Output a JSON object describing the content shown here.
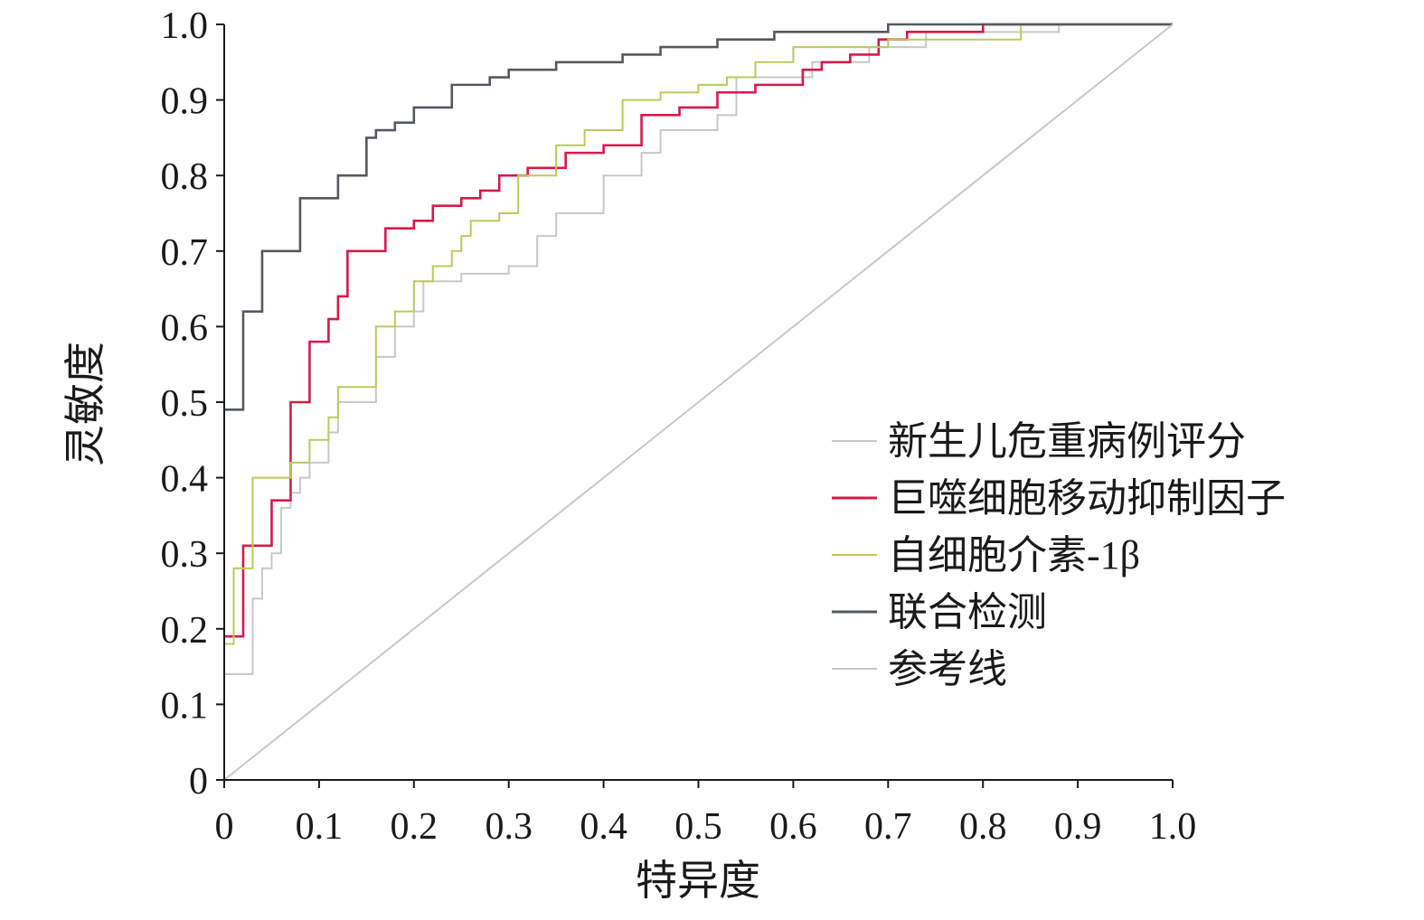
{
  "chart_data": {
    "type": "line",
    "xlabel": "特异度",
    "ylabel": "灵敏度",
    "xlim": [
      0,
      1.0
    ],
    "ylim": [
      0,
      1.0
    ],
    "x_ticks": [
      "0",
      "0.1",
      "0.2",
      "0.3",
      "0.4",
      "0.5",
      "0.6",
      "0.7",
      "0.8",
      "0.9",
      "1.0"
    ],
    "y_ticks": [
      "0",
      "0.1",
      "0.2",
      "0.3",
      "0.4",
      "0.5",
      "0.6",
      "0.7",
      "0.8",
      "0.9",
      "1.0"
    ],
    "grid": false,
    "legend_position": "center-right",
    "series": [
      {
        "name": "新生儿危重病例评分",
        "color": "#c8c8c8",
        "points": [
          [
            0,
            0.14
          ],
          [
            0.03,
            0.14
          ],
          [
            0.03,
            0.24
          ],
          [
            0.04,
            0.24
          ],
          [
            0.04,
            0.28
          ],
          [
            0.05,
            0.28
          ],
          [
            0.05,
            0.3
          ],
          [
            0.06,
            0.3
          ],
          [
            0.06,
            0.36
          ],
          [
            0.07,
            0.36
          ],
          [
            0.07,
            0.38
          ],
          [
            0.08,
            0.38
          ],
          [
            0.08,
            0.4
          ],
          [
            0.09,
            0.4
          ],
          [
            0.09,
            0.42
          ],
          [
            0.11,
            0.42
          ],
          [
            0.11,
            0.46
          ],
          [
            0.12,
            0.46
          ],
          [
            0.12,
            0.5
          ],
          [
            0.16,
            0.5
          ],
          [
            0.16,
            0.56
          ],
          [
            0.18,
            0.56
          ],
          [
            0.18,
            0.6
          ],
          [
            0.2,
            0.6
          ],
          [
            0.2,
            0.62
          ],
          [
            0.21,
            0.62
          ],
          [
            0.21,
            0.66
          ],
          [
            0.25,
            0.66
          ],
          [
            0.25,
            0.67
          ],
          [
            0.3,
            0.67
          ],
          [
            0.3,
            0.68
          ],
          [
            0.33,
            0.68
          ],
          [
            0.33,
            0.72
          ],
          [
            0.35,
            0.72
          ],
          [
            0.35,
            0.75
          ],
          [
            0.4,
            0.75
          ],
          [
            0.4,
            0.8
          ],
          [
            0.44,
            0.8
          ],
          [
            0.44,
            0.83
          ],
          [
            0.46,
            0.83
          ],
          [
            0.46,
            0.86
          ],
          [
            0.52,
            0.86
          ],
          [
            0.52,
            0.88
          ],
          [
            0.54,
            0.88
          ],
          [
            0.54,
            0.93
          ],
          [
            0.62,
            0.93
          ],
          [
            0.62,
            0.95
          ],
          [
            0.68,
            0.95
          ],
          [
            0.68,
            0.97
          ],
          [
            0.74,
            0.97
          ],
          [
            0.74,
            0.99
          ],
          [
            0.88,
            0.99
          ],
          [
            0.88,
            1.0
          ],
          [
            1.0,
            1.0
          ]
        ]
      },
      {
        "name": "巨噬细胞移动抑制因子",
        "color": "#d61a4a",
        "points": [
          [
            0,
            0.19
          ],
          [
            0.02,
            0.19
          ],
          [
            0.02,
            0.31
          ],
          [
            0.05,
            0.31
          ],
          [
            0.05,
            0.37
          ],
          [
            0.07,
            0.37
          ],
          [
            0.07,
            0.38
          ],
          [
            0.07,
            0.5
          ],
          [
            0.09,
            0.5
          ],
          [
            0.09,
            0.58
          ],
          [
            0.11,
            0.58
          ],
          [
            0.11,
            0.61
          ],
          [
            0.12,
            0.61
          ],
          [
            0.12,
            0.64
          ],
          [
            0.13,
            0.64
          ],
          [
            0.13,
            0.7
          ],
          [
            0.17,
            0.7
          ],
          [
            0.17,
            0.73
          ],
          [
            0.2,
            0.73
          ],
          [
            0.2,
            0.74
          ],
          [
            0.22,
            0.74
          ],
          [
            0.22,
            0.76
          ],
          [
            0.25,
            0.76
          ],
          [
            0.25,
            0.77
          ],
          [
            0.27,
            0.77
          ],
          [
            0.27,
            0.78
          ],
          [
            0.29,
            0.78
          ],
          [
            0.29,
            0.8
          ],
          [
            0.32,
            0.8
          ],
          [
            0.32,
            0.81
          ],
          [
            0.36,
            0.81
          ],
          [
            0.36,
            0.83
          ],
          [
            0.4,
            0.83
          ],
          [
            0.4,
            0.84
          ],
          [
            0.44,
            0.84
          ],
          [
            0.44,
            0.88
          ],
          [
            0.48,
            0.88
          ],
          [
            0.48,
            0.89
          ],
          [
            0.52,
            0.89
          ],
          [
            0.52,
            0.91
          ],
          [
            0.56,
            0.91
          ],
          [
            0.56,
            0.92
          ],
          [
            0.61,
            0.92
          ],
          [
            0.61,
            0.94
          ],
          [
            0.63,
            0.94
          ],
          [
            0.63,
            0.95
          ],
          [
            0.66,
            0.95
          ],
          [
            0.66,
            0.96
          ],
          [
            0.69,
            0.96
          ],
          [
            0.69,
            0.98
          ],
          [
            0.72,
            0.98
          ],
          [
            0.72,
            0.99
          ],
          [
            0.8,
            0.99
          ],
          [
            0.8,
            1.0
          ],
          [
            1.0,
            1.0
          ]
        ]
      },
      {
        "name": "自细胞介素-1β",
        "color": "#b8cc5a",
        "points": [
          [
            0,
            0.18
          ],
          [
            0.01,
            0.18
          ],
          [
            0.01,
            0.28
          ],
          [
            0.03,
            0.28
          ],
          [
            0.03,
            0.4
          ],
          [
            0.07,
            0.4
          ],
          [
            0.07,
            0.42
          ],
          [
            0.09,
            0.42
          ],
          [
            0.09,
            0.45
          ],
          [
            0.11,
            0.45
          ],
          [
            0.11,
            0.48
          ],
          [
            0.12,
            0.48
          ],
          [
            0.12,
            0.52
          ],
          [
            0.16,
            0.52
          ],
          [
            0.16,
            0.6
          ],
          [
            0.18,
            0.6
          ],
          [
            0.18,
            0.62
          ],
          [
            0.2,
            0.62
          ],
          [
            0.2,
            0.66
          ],
          [
            0.22,
            0.66
          ],
          [
            0.22,
            0.68
          ],
          [
            0.24,
            0.68
          ],
          [
            0.24,
            0.7
          ],
          [
            0.25,
            0.7
          ],
          [
            0.25,
            0.72
          ],
          [
            0.26,
            0.72
          ],
          [
            0.26,
            0.74
          ],
          [
            0.29,
            0.74
          ],
          [
            0.29,
            0.75
          ],
          [
            0.31,
            0.75
          ],
          [
            0.31,
            0.8
          ],
          [
            0.35,
            0.8
          ],
          [
            0.35,
            0.84
          ],
          [
            0.38,
            0.84
          ],
          [
            0.38,
            0.86
          ],
          [
            0.42,
            0.86
          ],
          [
            0.42,
            0.9
          ],
          [
            0.46,
            0.9
          ],
          [
            0.46,
            0.91
          ],
          [
            0.5,
            0.91
          ],
          [
            0.5,
            0.92
          ],
          [
            0.53,
            0.92
          ],
          [
            0.53,
            0.93
          ],
          [
            0.56,
            0.93
          ],
          [
            0.56,
            0.95
          ],
          [
            0.6,
            0.95
          ],
          [
            0.6,
            0.97
          ],
          [
            0.7,
            0.97
          ],
          [
            0.7,
            0.98
          ],
          [
            0.84,
            0.98
          ],
          [
            0.84,
            1.0
          ],
          [
            1.0,
            1.0
          ]
        ]
      },
      {
        "name": "联合检测",
        "color": "#555a60",
        "points": [
          [
            0,
            0.49
          ],
          [
            0.02,
            0.49
          ],
          [
            0.02,
            0.62
          ],
          [
            0.04,
            0.62
          ],
          [
            0.04,
            0.7
          ],
          [
            0.08,
            0.7
          ],
          [
            0.08,
            0.77
          ],
          [
            0.12,
            0.77
          ],
          [
            0.12,
            0.8
          ],
          [
            0.15,
            0.8
          ],
          [
            0.15,
            0.85
          ],
          [
            0.16,
            0.85
          ],
          [
            0.16,
            0.86
          ],
          [
            0.18,
            0.86
          ],
          [
            0.18,
            0.87
          ],
          [
            0.2,
            0.87
          ],
          [
            0.2,
            0.89
          ],
          [
            0.24,
            0.89
          ],
          [
            0.24,
            0.92
          ],
          [
            0.28,
            0.92
          ],
          [
            0.28,
            0.93
          ],
          [
            0.3,
            0.93
          ],
          [
            0.3,
            0.94
          ],
          [
            0.35,
            0.94
          ],
          [
            0.35,
            0.95
          ],
          [
            0.42,
            0.95
          ],
          [
            0.42,
            0.96
          ],
          [
            0.46,
            0.96
          ],
          [
            0.46,
            0.97
          ],
          [
            0.52,
            0.97
          ],
          [
            0.52,
            0.98
          ],
          [
            0.58,
            0.98
          ],
          [
            0.58,
            0.99
          ],
          [
            0.7,
            0.99
          ],
          [
            0.7,
            1.0
          ],
          [
            1.0,
            1.0
          ]
        ]
      },
      {
        "name": "参考线",
        "color": "#c8c8c8",
        "points": [
          [
            0,
            0
          ],
          [
            1.0,
            1.0
          ]
        ]
      }
    ]
  }
}
